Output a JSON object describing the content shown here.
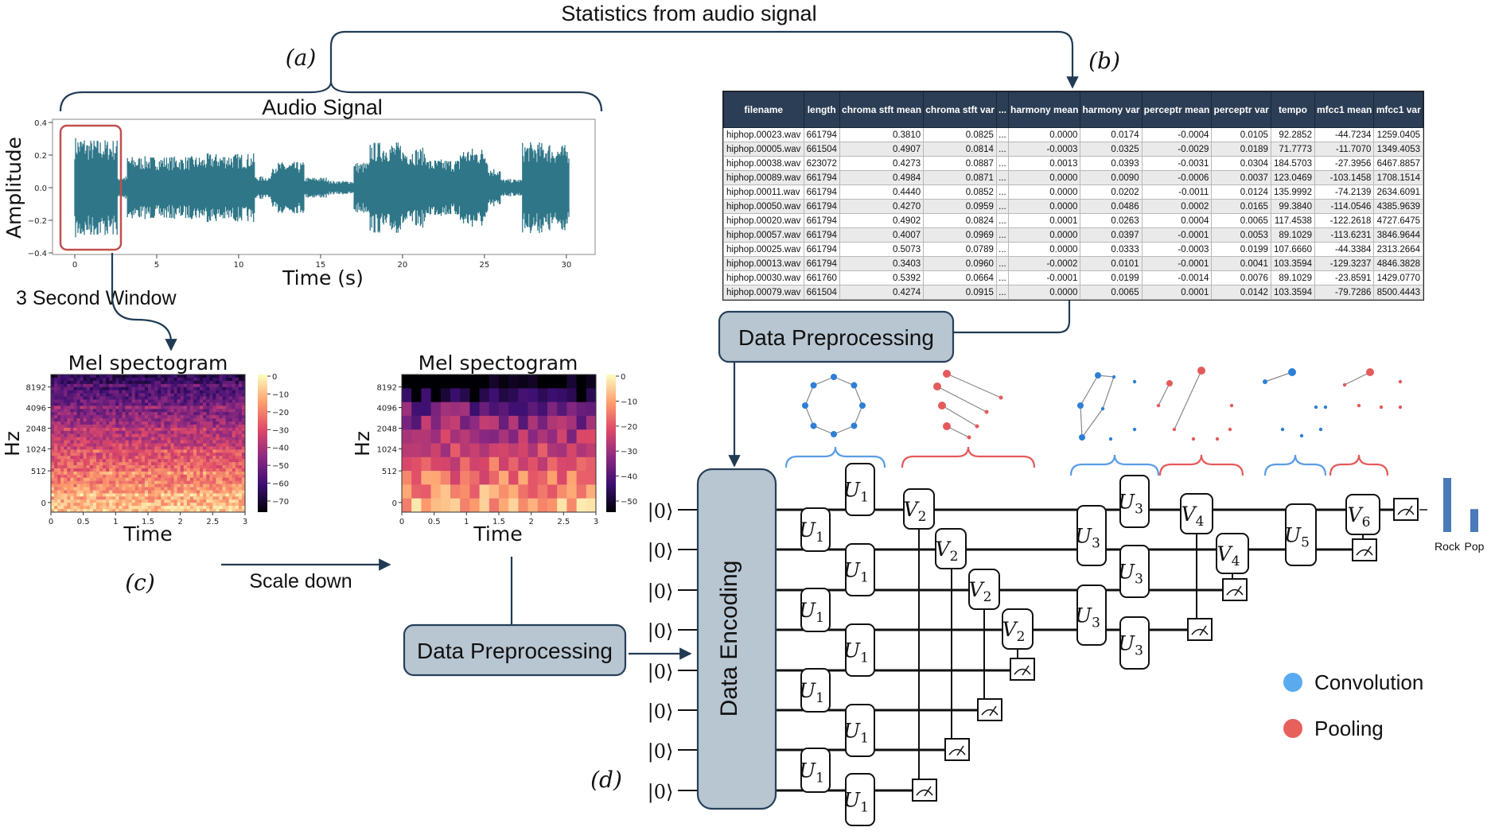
{
  "top_label": "Statistics from audio signal",
  "panel_labels": {
    "a": "(a)",
    "b": "(b)",
    "c": "(c)",
    "d": "(d)"
  },
  "waveform": {
    "title": "Audio Signal",
    "xlabel": "Time (s)",
    "ylabel": "Amplitude",
    "x_ticks": [
      "0",
      "5",
      "10",
      "15",
      "20",
      "25",
      "30"
    ],
    "y_ticks": [
      "0.4",
      "0.2",
      "0.0",
      "−0.2",
      "−0.4"
    ],
    "window_label": "3 Second Window",
    "color": "#2f7688",
    "window_color": "#c0504d"
  },
  "spectrogram_full": {
    "title": "Mel spectogram",
    "xlabel": "Time",
    "ylabel": "Hz",
    "x_ticks": [
      "0",
      "0.5",
      "1",
      "1.5",
      "2",
      "2.5",
      "3"
    ],
    "y_ticks": [
      "8192",
      "4096",
      "2048",
      "1024",
      "512",
      "0"
    ],
    "colorbar_ticks": [
      "0",
      "−10",
      "−20",
      "−30",
      "−40",
      "−50",
      "−60",
      "−70"
    ]
  },
  "spectrogram_small": {
    "title": "Mel spectogram",
    "xlabel": "Time",
    "ylabel": "Hz",
    "x_ticks": [
      "0",
      "0.5",
      "1",
      "1.5",
      "2",
      "2.5",
      "3"
    ],
    "y_ticks": [
      "8192",
      "4096",
      "2048",
      "1024",
      "512",
      "0"
    ],
    "colorbar_ticks": [
      "0",
      "−10",
      "−20",
      "−30",
      "−40",
      "−50"
    ]
  },
  "scale_down_label": "Scale down",
  "preprocessing_label": "Data Preprocessing",
  "encoding_label": "Data Encoding",
  "table": {
    "columns": [
      "filename",
      "length",
      "chroma stft mean",
      "chroma stft var",
      "...",
      "harmony mean",
      "harmony var",
      "perceptr mean",
      "perceptr var",
      "tempo",
      "mfcc1 mean",
      "mfcc1 var"
    ],
    "rows": [
      [
        "hiphop.00023.wav",
        "661794",
        "0.3810",
        "0.0825",
        "...",
        "0.0000",
        "0.0174",
        "-0.0004",
        "0.0105",
        "92.2852",
        "-44.7234",
        "1259.0405"
      ],
      [
        "hiphop.00005.wav",
        "661504",
        "0.4907",
        "0.0814",
        "...",
        "-0.0003",
        "0.0325",
        "-0.0029",
        "0.0189",
        "71.7773",
        "-11.7070",
        "1349.4053"
      ],
      [
        "hiphop.00038.wav",
        "623072",
        "0.4273",
        "0.0887",
        "...",
        "0.0013",
        "0.0393",
        "-0.0031",
        "0.0304",
        "184.5703",
        "-27.3956",
        "6467.8857"
      ],
      [
        "hiphop.00089.wav",
        "661794",
        "0.4984",
        "0.0871",
        "...",
        "0.0000",
        "0.0090",
        "-0.0006",
        "0.0037",
        "123.0469",
        "-103.1458",
        "1708.1514"
      ],
      [
        "hiphop.00011.wav",
        "661794",
        "0.4440",
        "0.0852",
        "...",
        "0.0000",
        "0.0202",
        "-0.0011",
        "0.0124",
        "135.9992",
        "-74.2139",
        "2634.6091"
      ],
      [
        "hiphop.00050.wav",
        "661794",
        "0.4270",
        "0.0959",
        "...",
        "0.0000",
        "0.0486",
        "0.0002",
        "0.0165",
        "99.3840",
        "-114.0546",
        "4385.9639"
      ],
      [
        "hiphop.00020.wav",
        "661794",
        "0.4902",
        "0.0824",
        "...",
        "0.0001",
        "0.0263",
        "0.0004",
        "0.0065",
        "117.4538",
        "-122.2618",
        "4727.6475"
      ],
      [
        "hiphop.00057.wav",
        "661794",
        "0.4007",
        "0.0969",
        "...",
        "0.0000",
        "0.0397",
        "-0.0001",
        "0.0053",
        "89.1029",
        "-113.6231",
        "3846.9644"
      ],
      [
        "hiphop.00025.wav",
        "661794",
        "0.5073",
        "0.0789",
        "...",
        "0.0000",
        "0.0333",
        "-0.0003",
        "0.0199",
        "107.6660",
        "-44.3384",
        "2313.2664"
      ],
      [
        "hiphop.00013.wav",
        "661794",
        "0.3403",
        "0.0960",
        "...",
        "-0.0002",
        "0.0101",
        "-0.0001",
        "0.0041",
        "103.3594",
        "-129.3237",
        "4846.3828"
      ],
      [
        "hiphop.00030.wav",
        "661760",
        "0.5392",
        "0.0664",
        "...",
        "-0.0001",
        "0.0199",
        "-0.0014",
        "0.0076",
        "89.1029",
        "-23.8591",
        "1429.0770"
      ],
      [
        "hiphop.00079.wav",
        "661504",
        "0.4274",
        "0.0915",
        "...",
        "0.0000",
        "0.0065",
        "0.0001",
        "0.0142",
        "103.3594",
        "-79.7286",
        "8500.4443"
      ]
    ]
  },
  "circuit": {
    "qubit_label": "|0⟩",
    "gate_letters": {
      "conv": "U",
      "pool": "V"
    },
    "output_labels": [
      "Rock",
      "Pop"
    ],
    "output_levels": [
      0.85,
      0.36
    ],
    "bar_color": "#4a7ab8"
  },
  "legend": {
    "items": [
      {
        "label": "Convolution",
        "color": "#5aaaf0"
      },
      {
        "label": "Pooling",
        "color": "#e8605c"
      }
    ]
  },
  "colors": {
    "arrow": "#213b55",
    "box_fill": "#b8c6d2",
    "box_stroke": "#27405a",
    "brace_conv": "#5a9ce6",
    "brace_pool": "#e45a5a",
    "node_conv": "#2e7fd6",
    "node_pool": "#e45a5a"
  }
}
